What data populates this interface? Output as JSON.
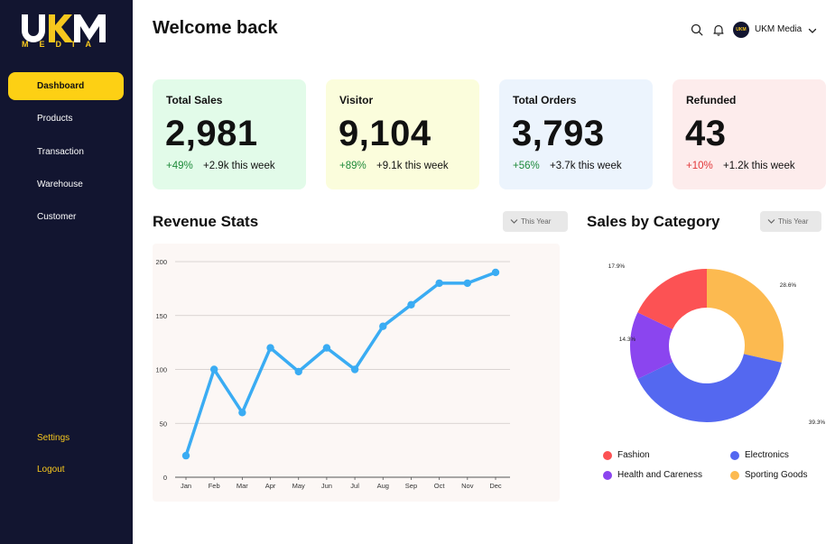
{
  "brand": {
    "logo_text": "UKM",
    "logo_sub": "MEDIA",
    "accent": "#fdd014",
    "sidebar_bg": "#121530"
  },
  "sidebar": {
    "items": [
      {
        "label": "Dashboard"
      },
      {
        "label": "Products"
      },
      {
        "label": "Transaction"
      },
      {
        "label": "Warehouse"
      },
      {
        "label": "Customer"
      }
    ],
    "bottom": [
      {
        "label": "Settings"
      },
      {
        "label": "Logout"
      }
    ]
  },
  "header": {
    "title": "Welcome back",
    "search_icon": "search-icon",
    "bell_icon": "bell-icon",
    "avatar_text": "UKM",
    "user_name": "UKM Media"
  },
  "cards": [
    {
      "label": "Total Sales",
      "value": "2,981",
      "pct": "+49%",
      "week": "+2.9k this week",
      "bg": "#e2fbe9",
      "trend": "up"
    },
    {
      "label": "Visitor",
      "value": "9,104",
      "pct": "+89%",
      "week": "+9.1k this week",
      "bg": "#fbfddc",
      "trend": "up"
    },
    {
      "label": "Total Orders",
      "value": "3,793",
      "pct": "+56%",
      "week": "+3.7k this week",
      "bg": "#ecf4fd",
      "trend": "up"
    },
    {
      "label": "Refunded",
      "value": "43",
      "pct": "+10%",
      "week": "+1.2k this week",
      "bg": "#fdecec",
      "trend": "down"
    }
  ],
  "revenue": {
    "title": "Revenue Stats",
    "filter": "This Year"
  },
  "category": {
    "title": "Sales by Category",
    "filter": "This Year"
  },
  "chart_data": [
    {
      "type": "line",
      "title": "Revenue Stats",
      "categories": [
        "Jan",
        "Feb",
        "Mar",
        "Apr",
        "May",
        "Jun",
        "Jul",
        "Aug",
        "Sep",
        "Oct",
        "Nov",
        "Dec"
      ],
      "values": [
        20,
        100,
        60,
        120,
        98,
        120,
        100,
        140,
        160,
        180,
        180,
        190
      ],
      "ylim": [
        0,
        200
      ],
      "yticks": [
        0,
        50,
        100,
        150,
        200
      ],
      "grid": true,
      "color": "#3aacf3"
    },
    {
      "type": "pie",
      "title": "Sales by Category",
      "donut": true,
      "slices": [
        {
          "name": "Sporting Goods",
          "value": 28.6,
          "label": "28.6%",
          "color": "#fcba50"
        },
        {
          "name": "Electronics",
          "value": 39.3,
          "label": "39.3%",
          "color": "#5468f0"
        },
        {
          "name": "Health and Careness",
          "value": 14.3,
          "label": "14.3%",
          "color": "#8b45ef"
        },
        {
          "name": "Fashion",
          "value": 17.9,
          "label": "17.9%",
          "color": "#fc5254"
        }
      ],
      "legend": [
        "Fashion",
        "Electronics",
        "Health and Careness",
        "Sporting Goods"
      ],
      "legend_placement": "bottom"
    }
  ]
}
